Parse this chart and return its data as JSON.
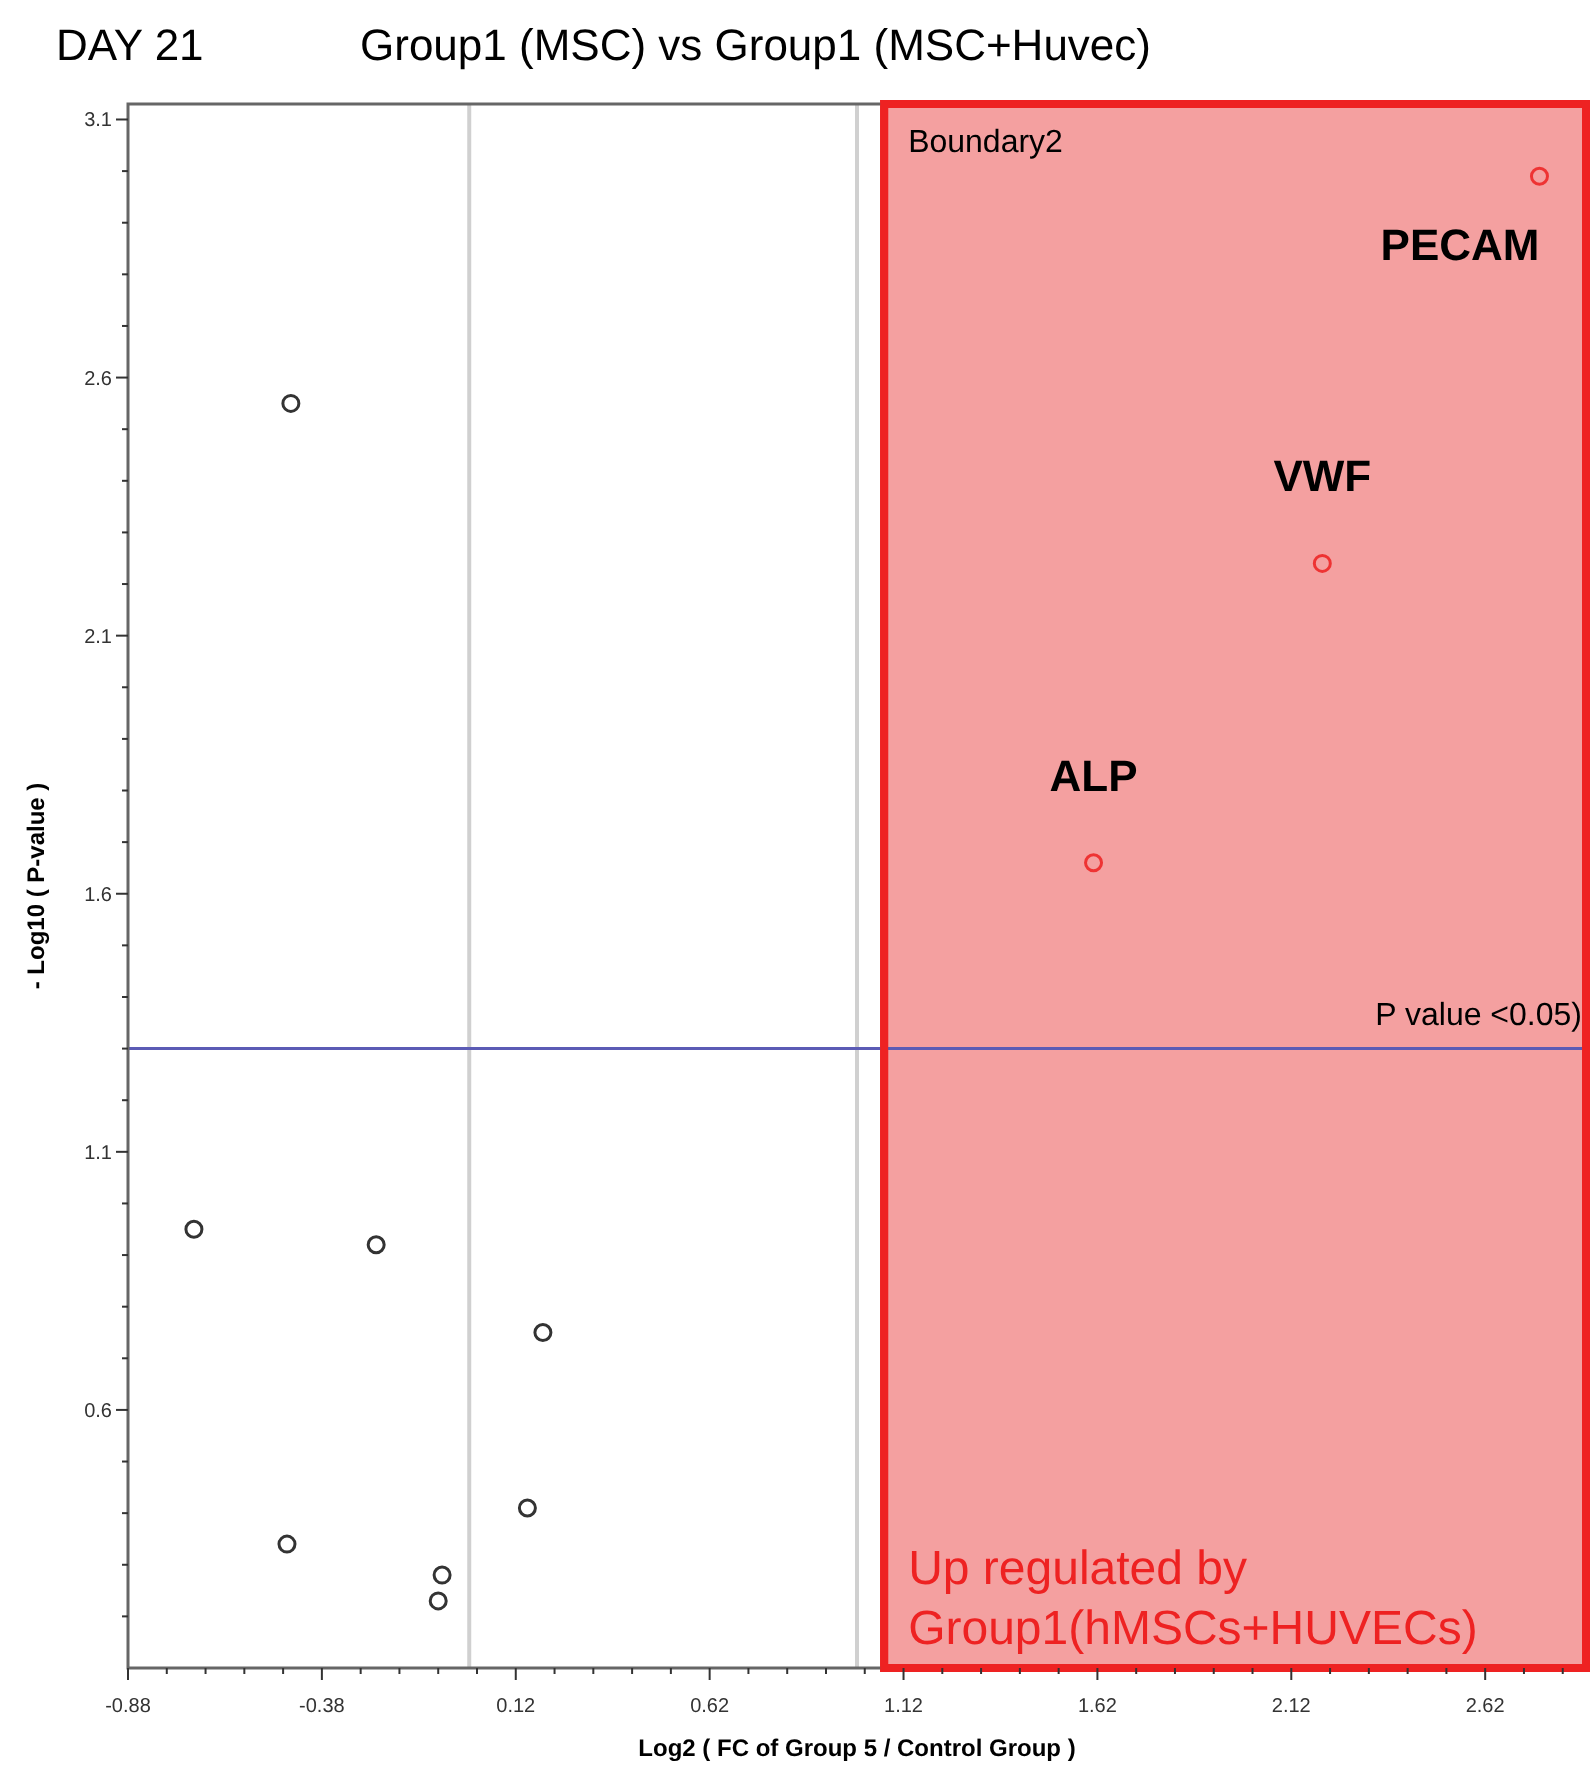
{
  "chart_data": {
    "type": "scatter",
    "title": "DAY 21",
    "subtitle": "Group1 (MSC) vs Group1 (MSC+Huvec)",
    "xlabel": "Log2 ( FC of Group 5 / Control Group )",
    "ylabel": "- Log10 ( P-value )",
    "marker": "circle",
    "grid": false,
    "xlim": [
      -0.88,
      2.88
    ],
    "ylim": [
      0.1,
      3.13
    ],
    "xticks": [
      -0.88,
      {
        "value": -0.78,
        "label": null
      },
      {
        "value": -0.68,
        "label": null
      },
      {
        "value": -0.58,
        "label": null
      },
      {
        "value": -0.48,
        "label": null
      },
      -0.38,
      {
        "value": -0.28,
        "label": null
      },
      {
        "value": -0.18,
        "label": null
      },
      {
        "value": -0.08,
        "label": null
      },
      {
        "value": 0.02,
        "label": null
      },
      0.12,
      {
        "value": 0.22,
        "label": null
      },
      {
        "value": 0.32,
        "label": null
      },
      {
        "value": 0.42,
        "label": null
      },
      {
        "value": 0.52,
        "label": null
      },
      0.62,
      {
        "value": 0.72,
        "label": null
      },
      {
        "value": 0.82,
        "label": null
      },
      {
        "value": 0.92,
        "label": null
      },
      {
        "value": 1.02,
        "label": null
      },
      1.12,
      {
        "value": 1.22,
        "label": null
      },
      {
        "value": 1.32,
        "label": null
      },
      {
        "value": 1.42,
        "label": null
      },
      {
        "value": 1.52,
        "label": null
      },
      1.62,
      {
        "value": 1.72,
        "label": null
      },
      {
        "value": 1.82,
        "label": null
      },
      {
        "value": 1.92,
        "label": null
      },
      {
        "value": 2.02,
        "label": null
      },
      2.12,
      {
        "value": 2.22,
        "label": null
      },
      {
        "value": 2.32,
        "label": null
      },
      {
        "value": 2.42,
        "label": null
      },
      {
        "value": 2.52,
        "label": null
      },
      2.62,
      {
        "value": 2.72,
        "label": null
      },
      {
        "value": 2.82,
        "label": null
      }
    ],
    "yticks": [
      {
        "value": 0.2,
        "label": null
      },
      {
        "value": 0.3,
        "label": null
      },
      {
        "value": 0.4,
        "label": null
      },
      {
        "value": 0.5,
        "label": null
      },
      0.6,
      {
        "value": 0.7,
        "label": null
      },
      {
        "value": 0.8,
        "label": null
      },
      {
        "value": 0.9,
        "label": null
      },
      {
        "value": 1.0,
        "label": null
      },
      1.1,
      {
        "value": 1.2,
        "label": null
      },
      {
        "value": 1.3,
        "label": null
      },
      {
        "value": 1.4,
        "label": null
      },
      {
        "value": 1.5,
        "label": null
      },
      1.6,
      {
        "value": 1.7,
        "label": null
      },
      {
        "value": 1.8,
        "label": null
      },
      {
        "value": 1.9,
        "label": null
      },
      {
        "value": 2.0,
        "label": null
      },
      2.1,
      {
        "value": 2.2,
        "label": null
      },
      {
        "value": 2.3,
        "label": null
      },
      {
        "value": 2.4,
        "label": null
      },
      {
        "value": 2.5,
        "label": null
      },
      2.6,
      {
        "value": 2.7,
        "label": null
      },
      {
        "value": 2.8,
        "label": null
      },
      {
        "value": 2.9,
        "label": null
      },
      {
        "value": 3.0,
        "label": null
      },
      3.1
    ],
    "series": [
      {
        "color": "#333333",
        "x": [
          -0.46,
          -0.71,
          -0.24,
          0.19,
          0.15,
          -0.47,
          -0.07,
          -0.08
        ],
        "values": [
          2.55,
          0.95,
          0.92,
          0.75,
          0.41,
          0.34,
          0.28,
          0.23
        ]
      },
      {
        "color": "#ee3333",
        "x": [
          2.76,
          2.2,
          1.61
        ],
        "values": [
          2.99,
          2.24,
          1.66
        ]
      }
    ],
    "bands": [
      {
        "axis": "x",
        "from": 1.07,
        "to": 2.88,
        "label": "Boundary2",
        "color": "#f4a0a0"
      }
    ],
    "ref_lines": [
      {
        "axis": "x",
        "value": 0,
        "color": "#d0d0d0"
      },
      {
        "axis": "x",
        "value": 1,
        "color": "#d0d0d0"
      },
      {
        "axis": "y",
        "value": 1.3,
        "label": "P value <0.05)",
        "color": "#5b5bb5"
      }
    ],
    "annotations": [
      "Up regulated by\nGroup1(hMSCs+HUVECs)",
      {
        "text": "PECAM",
        "x": 2.76,
        "y": 2.99
      },
      {
        "text": "VWF",
        "x": 2.2,
        "y": 2.24
      },
      {
        "text": "ALP",
        "x": 1.61,
        "y": 1.66
      }
    ]
  }
}
